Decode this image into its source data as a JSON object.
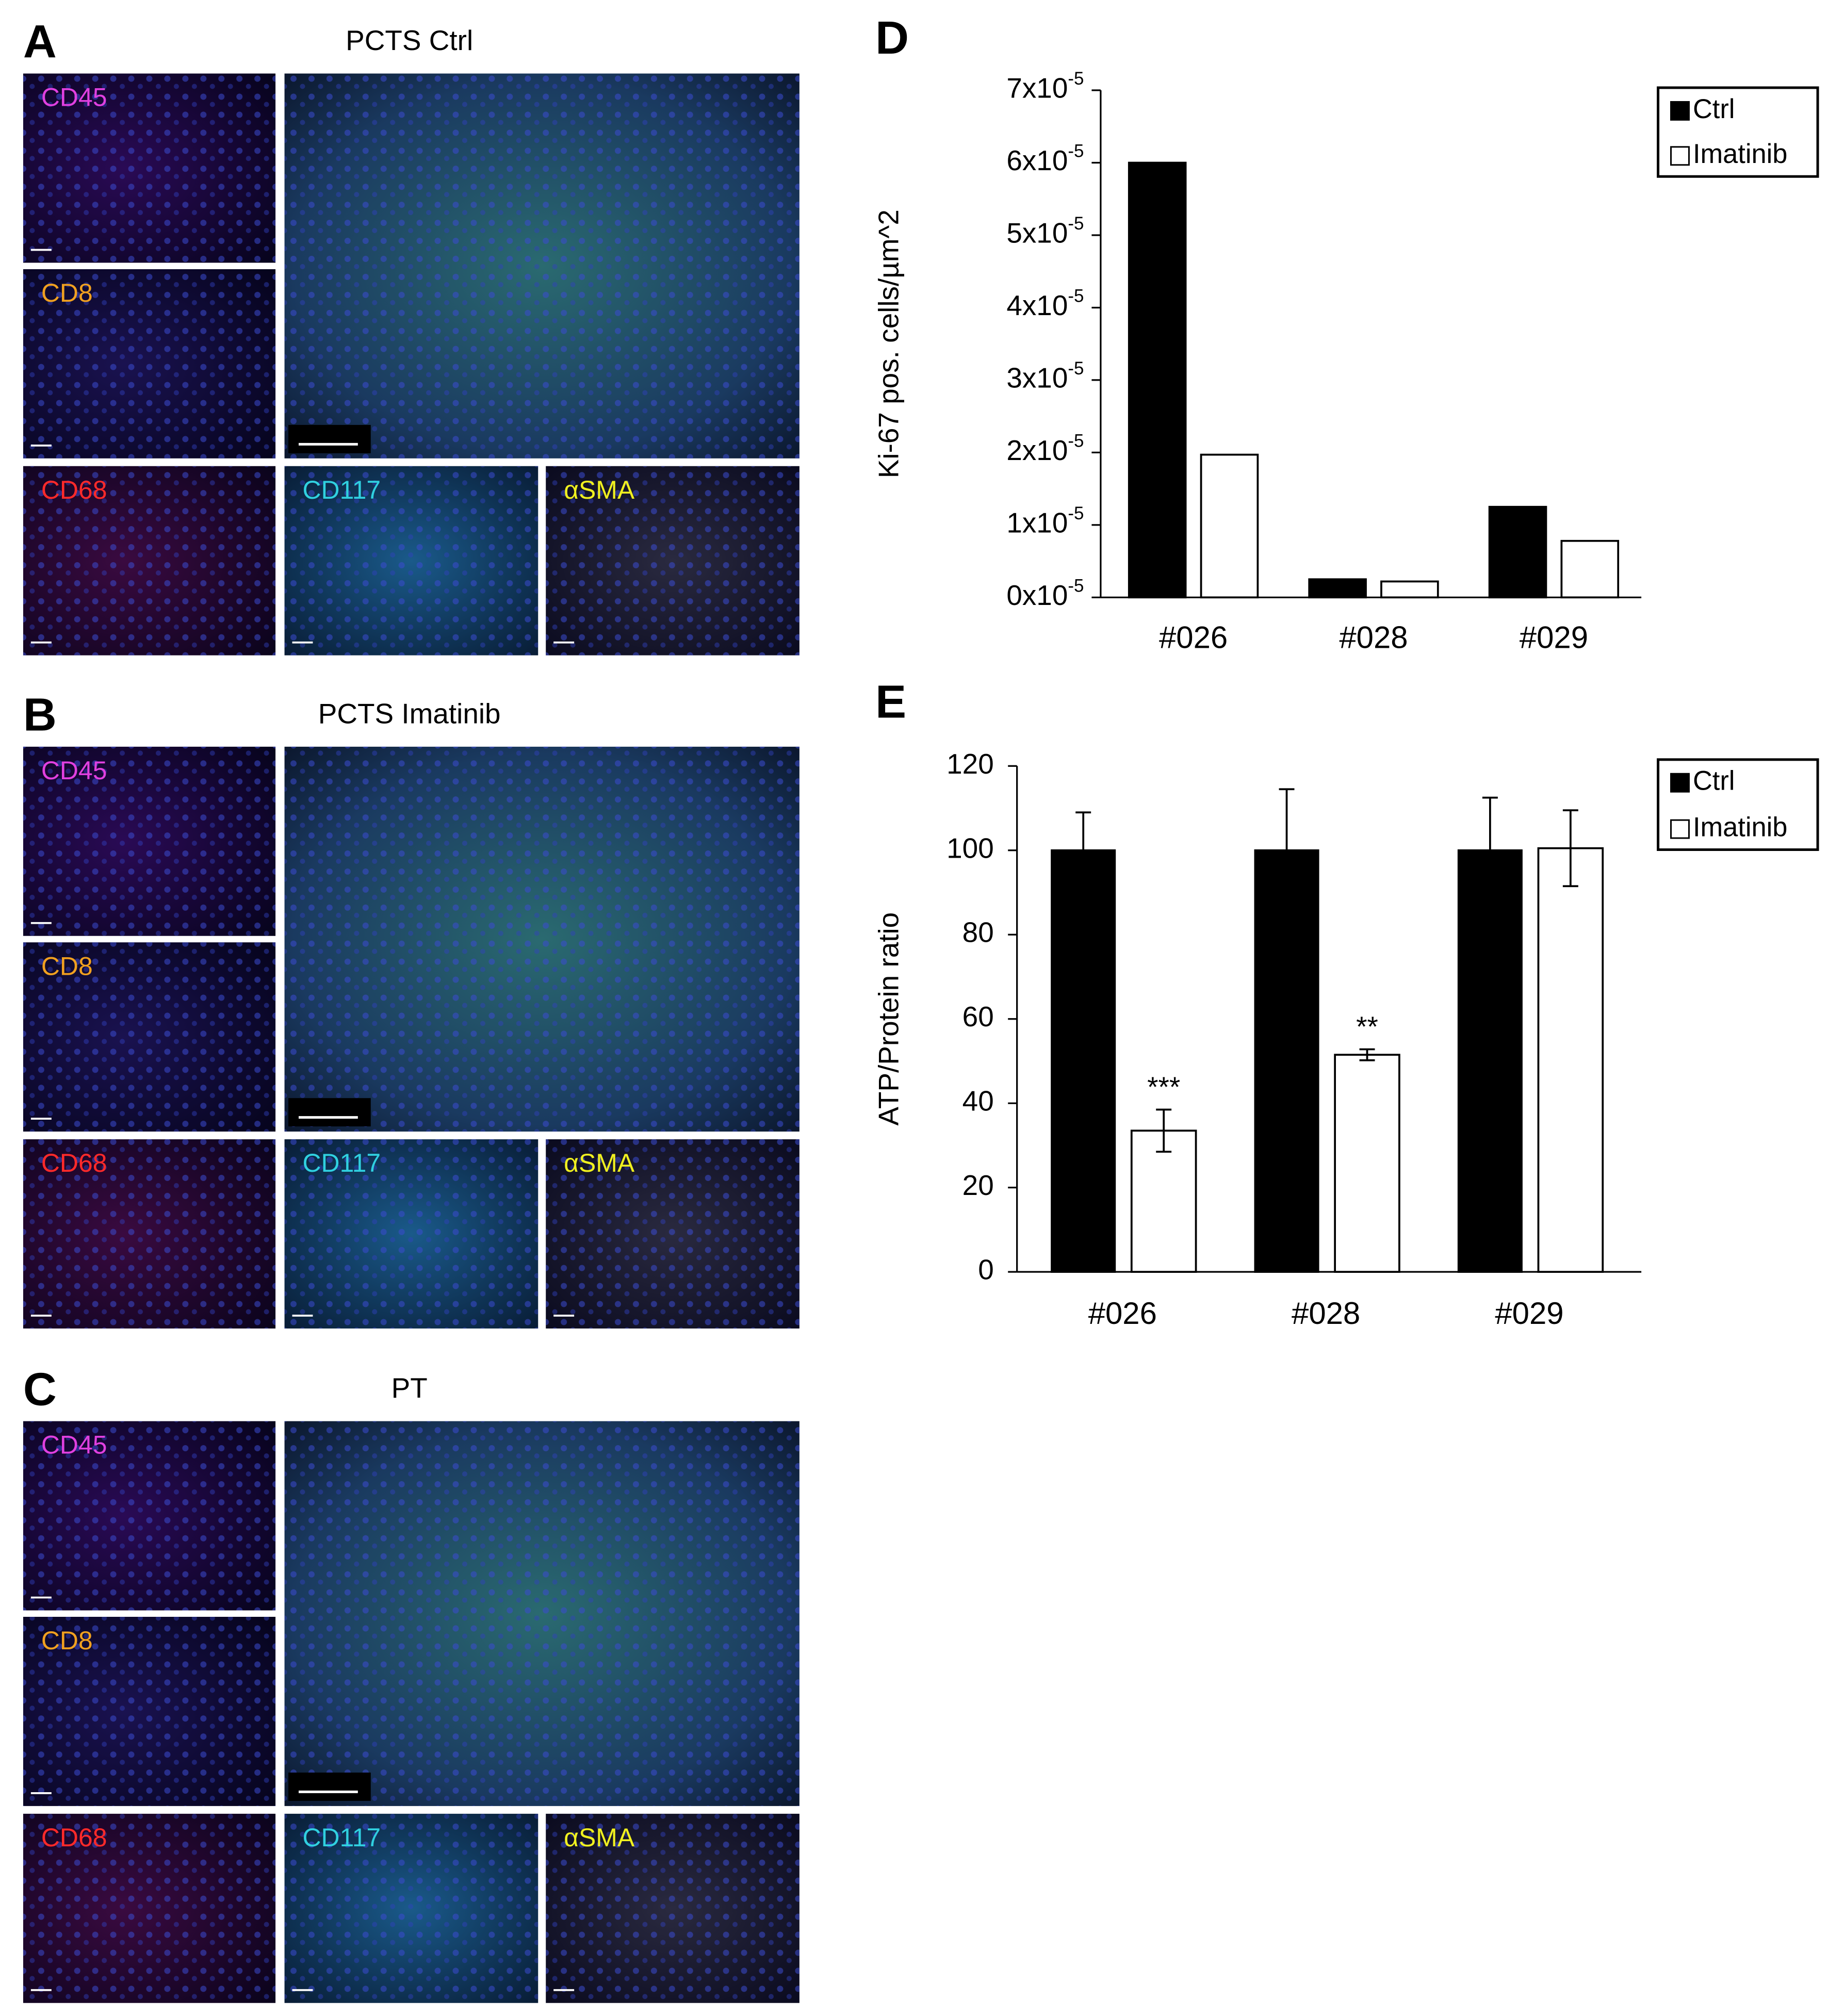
{
  "panels": [
    {
      "letter": "A",
      "title": "PCTS Ctrl",
      "channels": [
        "CD45",
        "CD8",
        "CD68",
        "CD117",
        "αSMA"
      ]
    },
    {
      "letter": "B",
      "title": "PCTS Imatinib",
      "channels": [
        "CD45",
        "CD8",
        "CD68",
        "CD117",
        "αSMA"
      ]
    },
    {
      "letter": "C",
      "title": "PT",
      "channels": [
        "CD45",
        "CD8",
        "CD68",
        "CD117",
        "αSMA"
      ]
    }
  ],
  "chart_data": [
    {
      "type": "bar",
      "letter": "D",
      "y_label": "Ki-67 pos. cells/µm^2",
      "categories": [
        "#026",
        "#028",
        "#029"
      ],
      "series": [
        {
          "name": "Ctrl",
          "color": "#000000",
          "values": [
            6e-05,
            2.5e-06,
            1.25e-05
          ]
        },
        {
          "name": "Imatinib",
          "color": "#ffffff",
          "values": [
            1.97e-05,
            2.2e-06,
            7.8e-06
          ]
        }
      ],
      "ylim": [
        0,
        7e-05
      ],
      "yticks": [
        {
          "value": 0,
          "label": "0x10",
          "exponent": "-5"
        },
        {
          "value": 1e-05,
          "label": "1x10",
          "exponent": "-5"
        },
        {
          "value": 2e-05,
          "label": "2x10",
          "exponent": "-5"
        },
        {
          "value": 3e-05,
          "label": "3x10",
          "exponent": "-5"
        },
        {
          "value": 4e-05,
          "label": "4x10",
          "exponent": "-5"
        },
        {
          "value": 5e-05,
          "label": "5x10",
          "exponent": "-5"
        },
        {
          "value": 6e-05,
          "label": "6x10",
          "exponent": "-5"
        },
        {
          "value": 7e-05,
          "label": "7x10",
          "exponent": "-5"
        }
      ],
      "legend": "upper right outside"
    },
    {
      "type": "bar",
      "letter": "E",
      "y_label": "ATP/Protein ratio",
      "categories": [
        "#026",
        "#028",
        "#029"
      ],
      "series": [
        {
          "name": "Ctrl",
          "color": "#000000",
          "values": [
            100,
            100,
            100
          ],
          "errors": [
            9,
            14.5,
            12.5
          ]
        },
        {
          "name": "Imatinib",
          "color": "#ffffff",
          "values": [
            33.5,
            51.5,
            100.5
          ],
          "errors": [
            5,
            1.3,
            9
          ],
          "significance": [
            "***",
            "**",
            null
          ]
        }
      ],
      "ylim": [
        0,
        120
      ],
      "yticks": [
        0,
        20,
        40,
        60,
        80,
        100,
        120
      ],
      "legend": "upper right outside"
    }
  ]
}
